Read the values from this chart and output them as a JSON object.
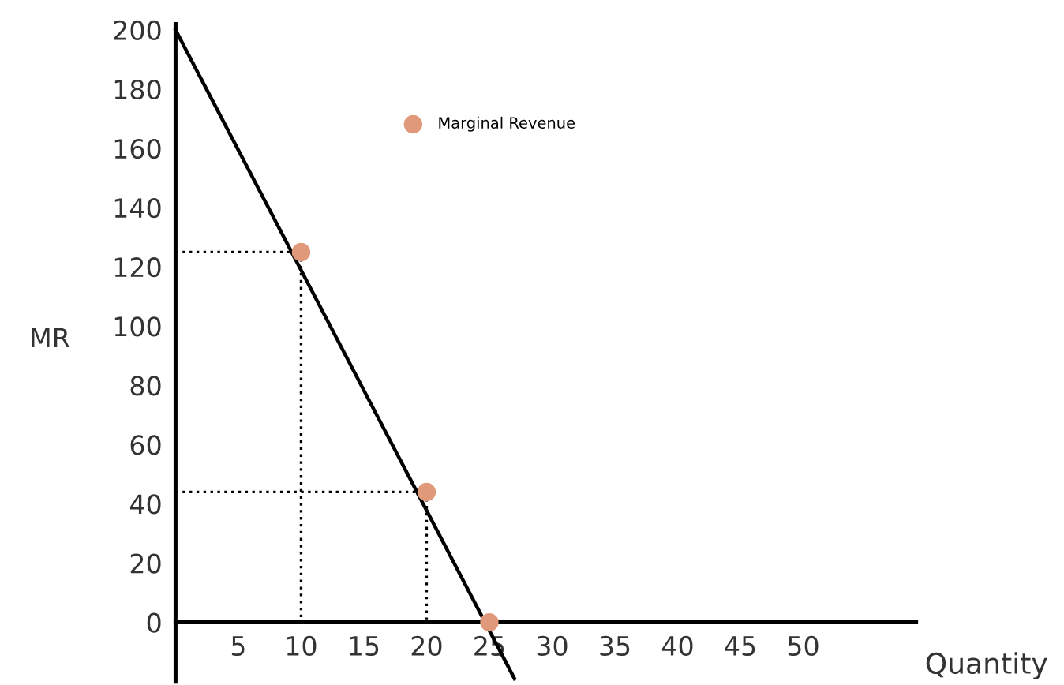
{
  "chart_data": {
    "type": "line",
    "xlabel": "Quantity",
    "ylabel": "MR",
    "xlim": [
      0,
      59
    ],
    "ylim": [
      -20,
      202
    ],
    "xticks": [
      5,
      10,
      15,
      20,
      25,
      30,
      35,
      40,
      45,
      50
    ],
    "yticks": [
      0,
      20,
      40,
      60,
      80,
      100,
      120,
      140,
      160,
      180,
      200
    ],
    "grid": false,
    "legend": "top",
    "series": [
      {
        "color": "#000000",
        "x": [
          0,
          27
        ],
        "values": [
          200,
          -19
        ],
        "line_style": "solid"
      },
      {
        "color": "#000000",
        "x": [
          0,
          10,
          10
        ],
        "values": [
          125,
          125,
          0
        ],
        "line_style": "dotted"
      },
      {
        "color": "#000000",
        "x": [
          0,
          20,
          20
        ],
        "values": [
          44,
          44,
          0
        ],
        "line_style": "dotted"
      },
      {
        "type": "scatter",
        "name": "Marginal Revenue",
        "color": "#e0997a",
        "x": [
          10,
          20,
          25
        ],
        "values": [
          125,
          44,
          0
        ],
        "marker": "circle"
      }
    ]
  }
}
